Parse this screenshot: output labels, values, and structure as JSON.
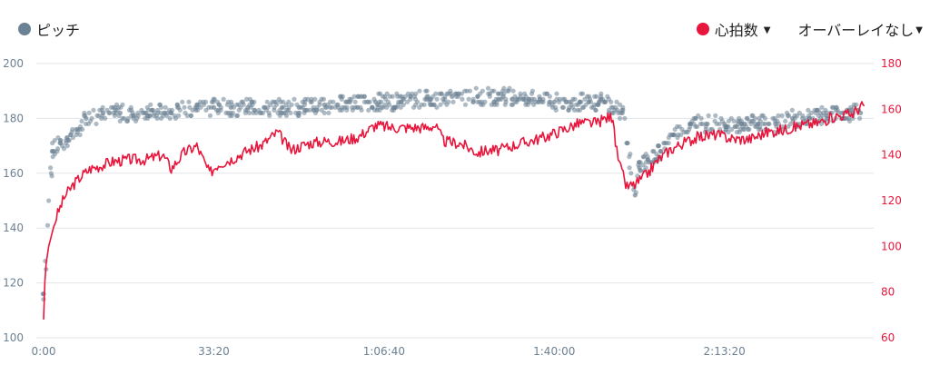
{
  "legend": {
    "pitch_label": "ピッチ",
    "hr_label": "心拍数",
    "overlay_label": "オーバーレイなし"
  },
  "colors": {
    "pitch": "#6c8193",
    "hr": "#e8163c",
    "grid": "#e3e6ea",
    "left_axis_text": "#6c8193",
    "right_axis_text": "#e8163c",
    "x_axis_text": "#6c8193"
  },
  "icons": {
    "dropdown": "caret-down-icon"
  },
  "chart_data": {
    "type": "scatter+line",
    "x_unit": "elapsed time",
    "x_ticks": [
      "0:00",
      "33:20",
      "1:06:40",
      "1:40:00",
      "2:13:20"
    ],
    "x_tick_values_s": [
      0,
      2000,
      4000,
      6000,
      8000
    ],
    "xlim_s": [
      0,
      9700
    ],
    "left_axis": {
      "ylim": [
        100,
        200
      ],
      "ticks": [
        100,
        120,
        140,
        160,
        180,
        200
      ]
    },
    "right_axis": {
      "ylim": [
        60,
        180
      ],
      "ticks": [
        60,
        80,
        100,
        120,
        140,
        160,
        180
      ]
    },
    "series": [
      {
        "name": "ピッチ",
        "kind": "scatter",
        "axis": "left",
        "x_s": [
          0,
          100,
          200,
          300,
          400,
          500,
          700,
          900,
          1200,
          1500,
          1800,
          2000,
          2200,
          2400,
          2600,
          2800,
          3000,
          3300,
          3600,
          3900,
          4200,
          4500,
          4800,
          5100,
          5400,
          5700,
          6000,
          6300,
          6600,
          6800,
          6950,
          7000,
          7100,
          7250,
          7400,
          7600,
          7800,
          8000,
          8200,
          8400,
          8600,
          8800,
          9000,
          9200,
          9400,
          9600
        ],
        "y": [
          116,
          168,
          171,
          172,
          176,
          180,
          182,
          182,
          182,
          182,
          184,
          184,
          184,
          184,
          184,
          184,
          184,
          185,
          186,
          186,
          186,
          187,
          188,
          188,
          188,
          187,
          186,
          186,
          186,
          182,
          152,
          162,
          165,
          168,
          174,
          178,
          178,
          178,
          178,
          178,
          178,
          180,
          180,
          181,
          182,
          182
        ]
      },
      {
        "name": "心拍数",
        "kind": "line",
        "axis": "right",
        "x_s": [
          0,
          20,
          60,
          150,
          250,
          350,
          450,
          550,
          650,
          800,
          1000,
          1200,
          1400,
          1500,
          1650,
          1800,
          1950,
          2050,
          2200,
          2400,
          2550,
          2750,
          2900,
          3100,
          3300,
          3500,
          3700,
          3900,
          4100,
          4300,
          4500,
          4600,
          4700,
          4900,
          5100,
          5200,
          5350,
          5500,
          5700,
          5900,
          6100,
          6300,
          6500,
          6600,
          6700,
          6720,
          6780,
          6850,
          6950,
          7100,
          7200,
          7350,
          7500,
          7700,
          7900,
          8100,
          8300,
          8500,
          8700,
          8900,
          9100,
          9300,
          9500,
          9600,
          9650
        ],
        "y": [
          68,
          90,
          100,
          113,
          122,
          127,
          131,
          134,
          135,
          137,
          138,
          138,
          140,
          134,
          141,
          144,
          132,
          136,
          138,
          142,
          144,
          150,
          142,
          145,
          146,
          146,
          148,
          153,
          152,
          152,
          152,
          153,
          146,
          145,
          141,
          142,
          142,
          144,
          146,
          148,
          151,
          154,
          154,
          156,
          157,
          144,
          134,
          126,
          127,
          132,
          137,
          142,
          145,
          148,
          149,
          147,
          147,
          150,
          151,
          153,
          154,
          157,
          158,
          161,
          162
        ]
      }
    ],
    "title": "",
    "grid": "horizontal",
    "legend": "top-left and top-right"
  }
}
